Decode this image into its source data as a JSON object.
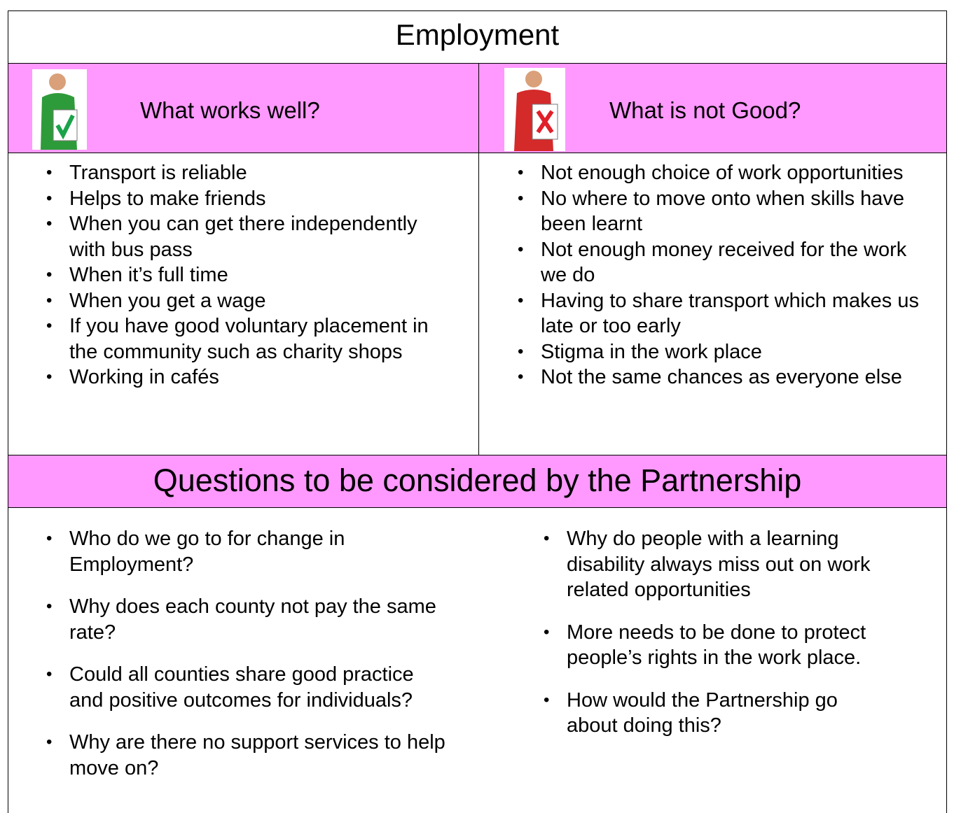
{
  "header": {
    "title": "Employment"
  },
  "works_well": {
    "heading": "What works well?",
    "items": [
      "Transport is reliable",
      "Helps to make friends",
      "When you can get there independently with bus pass",
      "When it’s full time",
      "When you get a wage",
      "If you have good voluntary placement in the community such as charity shops",
      "Working in cafés"
    ]
  },
  "not_good": {
    "heading": "What is not Good?",
    "items": [
      "Not enough choice of work opportunities",
      "No where to move onto when skills have been learnt",
      "Not enough money received for the work we do",
      "Having to share transport which makes us late or too early",
      "Stigma in the work place",
      "Not the same chances as everyone else"
    ]
  },
  "questions": {
    "title": "Questions to be considered by the Partnership",
    "left": [
      "Who do we go to for change in Employment?",
      "Why does each county not pay the same rate?",
      "Could all counties share good practice and positive outcomes for individuals?",
      "Why are there no support services to help move on?"
    ],
    "right": [
      "Why do people with a learning disability always miss out on work related opportunities",
      "More needs to be done to protect people’s rights in the work place.",
      "How would the Partnership go about doing this?"
    ]
  }
}
